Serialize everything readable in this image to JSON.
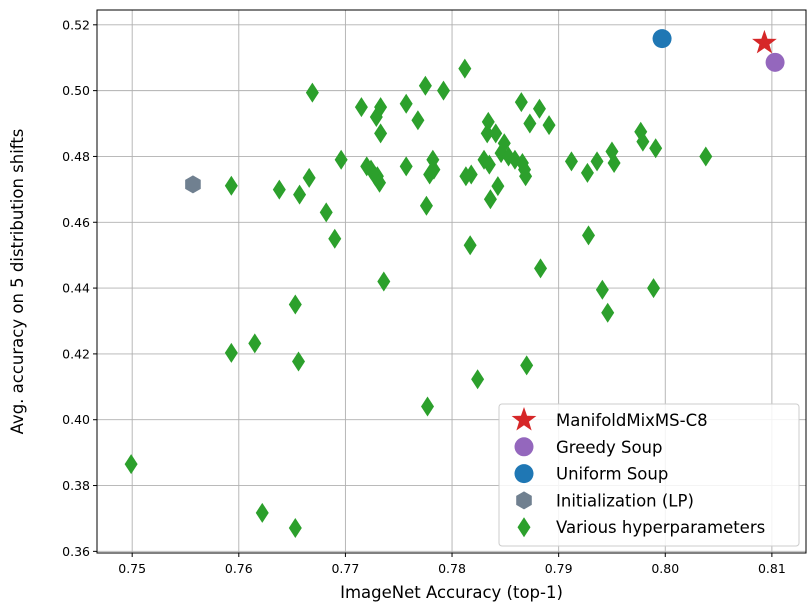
{
  "chart_data": {
    "type": "scatter",
    "title": "",
    "xlabel": "ImageNet Accuracy (top-1)",
    "ylabel": "Avg. accuracy on 5 distribution shifts",
    "xlim": [
      0.7467,
      0.8132
    ],
    "ylim": [
      0.3595,
      0.5245
    ],
    "xticks": [
      0.75,
      0.76,
      0.77,
      0.78,
      0.79,
      0.8,
      0.81
    ],
    "xtick_labels": [
      "0.75",
      "0.76",
      "0.77",
      "0.78",
      "0.79",
      "0.80",
      "0.81"
    ],
    "yticks": [
      0.36,
      0.38,
      0.4,
      0.42,
      0.44,
      0.46,
      0.48,
      0.5,
      0.52
    ],
    "ytick_labels": [
      "0.36",
      "0.38",
      "0.40",
      "0.42",
      "0.44",
      "0.46",
      "0.48",
      "0.50",
      "0.52"
    ],
    "grid": true,
    "legend_position": "lower-right",
    "series": [
      {
        "name": "ManifoldMixMS-C8",
        "marker": "star",
        "color": "#d62728",
        "points": [
          [
            0.8093,
            0.5145
          ]
        ]
      },
      {
        "name": "Greedy Soup",
        "marker": "circle",
        "color": "#9467bd",
        "points": [
          [
            0.8103,
            0.5086
          ]
        ]
      },
      {
        "name": "Uniform Soup",
        "marker": "circle",
        "color": "#1f77b4",
        "points": [
          [
            0.7997,
            0.5158
          ]
        ]
      },
      {
        "name": "Initialization (LP)",
        "marker": "hexagon",
        "color": "#708090",
        "points": [
          [
            0.7557,
            0.4715
          ]
        ]
      },
      {
        "name": "Various hyperparameters",
        "marker": "diamond",
        "color": "#2ca02c",
        "points": [
          [
            0.7499,
            0.3865
          ],
          [
            0.7593,
            0.4711
          ],
          [
            0.7593,
            0.4203
          ],
          [
            0.7615,
            0.4232
          ],
          [
            0.7622,
            0.3717
          ],
          [
            0.7638,
            0.4699
          ],
          [
            0.7653,
            0.435
          ],
          [
            0.7656,
            0.4177
          ],
          [
            0.7653,
            0.3671
          ],
          [
            0.7657,
            0.4684
          ],
          [
            0.7666,
            0.4735
          ],
          [
            0.7669,
            0.4994
          ],
          [
            0.7682,
            0.463
          ],
          [
            0.769,
            0.455
          ],
          [
            0.7696,
            0.479
          ],
          [
            0.7715,
            0.495
          ],
          [
            0.772,
            0.477
          ],
          [
            0.7724,
            0.476
          ],
          [
            0.7728,
            0.474
          ],
          [
            0.7729,
            0.492
          ],
          [
            0.773,
            0.474
          ],
          [
            0.7733,
            0.495
          ],
          [
            0.7733,
            0.487
          ],
          [
            0.7732,
            0.472
          ],
          [
            0.7736,
            0.442
          ],
          [
            0.7757,
            0.496
          ],
          [
            0.7757,
            0.477
          ],
          [
            0.7768,
            0.491
          ],
          [
            0.7775,
            0.5015
          ],
          [
            0.7776,
            0.465
          ],
          [
            0.7777,
            0.404
          ],
          [
            0.7779,
            0.4745
          ],
          [
            0.7782,
            0.479
          ],
          [
            0.7783,
            0.476
          ],
          [
            0.7792,
            0.5
          ],
          [
            0.7812,
            0.5067
          ],
          [
            0.7813,
            0.474
          ],
          [
            0.7818,
            0.4745
          ],
          [
            0.7817,
            0.453
          ],
          [
            0.7824,
            0.4123
          ],
          [
            0.783,
            0.479
          ],
          [
            0.7833,
            0.487
          ],
          [
            0.7834,
            0.4905
          ],
          [
            0.7835,
            0.4775
          ],
          [
            0.7836,
            0.467
          ],
          [
            0.7841,
            0.487
          ],
          [
            0.7843,
            0.471
          ],
          [
            0.7846,
            0.481
          ],
          [
            0.7849,
            0.484
          ],
          [
            0.7853,
            0.48
          ],
          [
            0.7859,
            0.479
          ],
          [
            0.7865,
            0.4965
          ],
          [
            0.7866,
            0.478
          ],
          [
            0.7868,
            0.476
          ],
          [
            0.7869,
            0.474
          ],
          [
            0.787,
            0.4165
          ],
          [
            0.7873,
            0.49
          ],
          [
            0.7882,
            0.4945
          ],
          [
            0.7883,
            0.446
          ],
          [
            0.7891,
            0.4895
          ],
          [
            0.7912,
            0.4785
          ],
          [
            0.7927,
            0.475
          ],
          [
            0.7928,
            0.456
          ],
          [
            0.7936,
            0.4785
          ],
          [
            0.7941,
            0.4395
          ],
          [
            0.7946,
            0.4325
          ],
          [
            0.795,
            0.4815
          ],
          [
            0.7952,
            0.478
          ],
          [
            0.7977,
            0.4875
          ],
          [
            0.7979,
            0.4845
          ],
          [
            0.7989,
            0.44
          ],
          [
            0.7991,
            0.4825
          ],
          [
            0.8038,
            0.48
          ]
        ]
      }
    ]
  }
}
